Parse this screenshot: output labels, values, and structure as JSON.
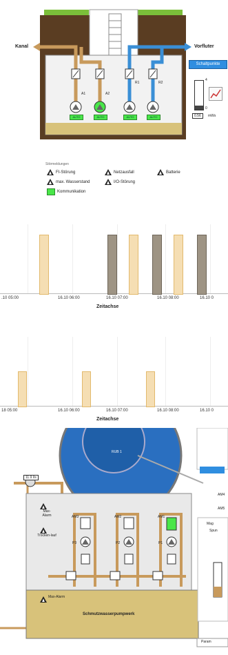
{
  "overview": {
    "left_label": "Kanal",
    "right_label": "Vorfluter",
    "button": "Schaltpunkte",
    "gauge_max": "4",
    "gauge_min": "0",
    "gauge_value": "0.56",
    "gauge_unit": "mWs",
    "pumps": [
      {
        "name": "A1",
        "state": "AUTO"
      },
      {
        "name": "A2",
        "state": "AUTO"
      },
      {
        "name": "R1",
        "state": "AUTO"
      },
      {
        "name": "R2",
        "state": "AUTO"
      }
    ]
  },
  "legend": {
    "title": "Störmeldungen",
    "items": [
      "FI-Störung",
      "Netzausfall",
      "Batterie",
      "max. Wasserstand",
      "I/O-Störung",
      "Kommunikation"
    ]
  },
  "chart1": {
    "ticks": [
      ".10 05:00",
      "16.10 06:00",
      "16.10 07:00",
      "16.10 08:00",
      "16.10 0"
    ],
    "xlabel": "Zeitachse"
  },
  "chart2": {
    "ticks": [
      "18 05:00",
      "16.10 06:00",
      "16.10 07:00",
      "16.10 08:00",
      "16.10 0"
    ],
    "xlabel": "Zeitachse"
  },
  "chart_data": [
    {
      "type": "bar",
      "xlabel": "Zeitachse",
      "categories": [
        "16.10 05:00",
        "16.10 06:00",
        "16.10 07:00",
        "16.10 08:00"
      ],
      "series": [
        {
          "values": [
            1,
            0,
            1,
            1
          ],
          "color": "#f5deb3"
        },
        {
          "values": [
            0,
            1,
            1,
            1
          ],
          "color": "#9e9484"
        }
      ]
    },
    {
      "type": "bar",
      "xlabel": "Zeitachse",
      "categories": [
        "16.10 05:00",
        "16.10 06:00",
        "16.10 07:00",
        "16.10 08:00"
      ],
      "series": [
        {
          "values": [
            1,
            1,
            1,
            0
          ],
          "color": "#f5deb3"
        }
      ]
    }
  ],
  "plant": {
    "tank": "RUB 1",
    "flow": "11.9 l/s",
    "alarm_max": "Max-Alarm",
    "alarm_dry": "Trocken-lauf",
    "alarm_tank": "Max-Alarm",
    "station": "Schmutzwasserpumpwerk",
    "pumps": [
      "P3",
      "P2",
      "P1"
    ],
    "motors": [
      "AM3",
      "AM2",
      "AM1"
    ],
    "right_labels": [
      "AM4",
      "AM5"
    ],
    "side_label": "Mag",
    "side_sub": "Spun",
    "param_btn": "Param"
  },
  "colors": {
    "pipe_brown": "#c89a5c",
    "pipe_blue": "#3a8fd6",
    "ground": "#5a3d22",
    "water": "#d8c27a",
    "bar_light": "#f5deb3",
    "bar_dark": "#9e9484",
    "auto_green": "#49e649",
    "tank_blue": "#2a6fc0"
  }
}
